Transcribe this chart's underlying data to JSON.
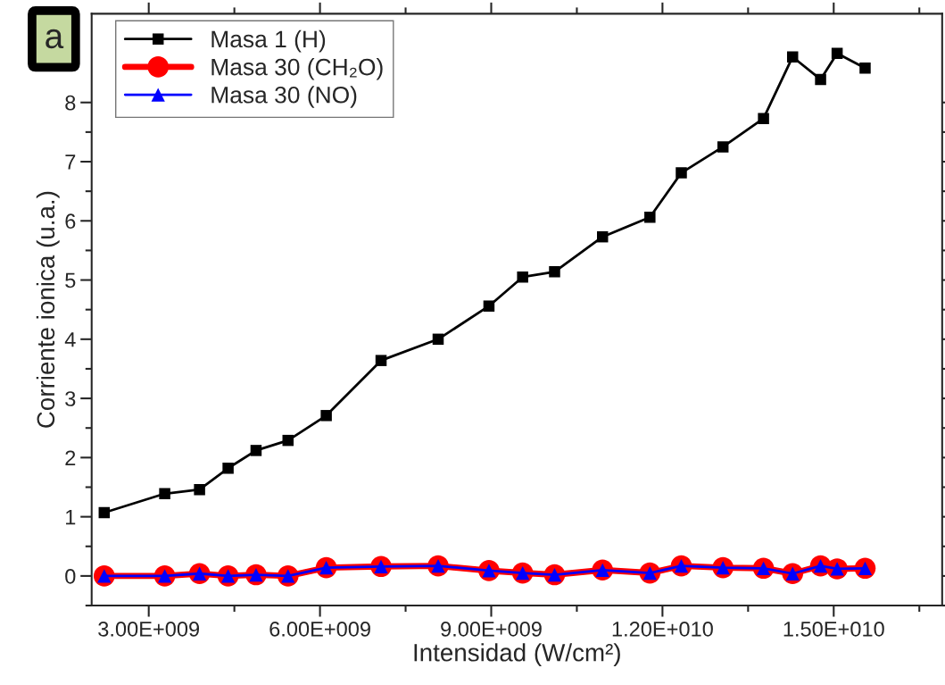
{
  "chart_data": {
    "type": "line",
    "xlabel": "Intensidad (W/cm²)",
    "ylabel": "Corriente ionica (u.a.)",
    "annotations": [
      "a"
    ],
    "x": [
      2220000000.0,
      3280000000.0,
      3890000000.0,
      4390000000.0,
      4880000000.0,
      5440000000.0,
      6110000000.0,
      7070000000.0,
      8070000000.0,
      8960000000.0,
      9550000000.0,
      10110000000.0,
      10950000000.0,
      11780000000.0,
      12330000000.0,
      13060000000.0,
      13770000000.0,
      14280000000.0,
      14770000000.0,
      15060000000.0,
      15550000000.0
    ],
    "series": [
      {
        "name": "Masa 1 (H)",
        "color": "#000000",
        "marker": "square",
        "values": [
          1.07,
          1.39,
          1.46,
          1.82,
          2.12,
          2.29,
          2.71,
          3.64,
          4.0,
          4.56,
          5.05,
          5.14,
          5.73,
          6.06,
          6.81,
          7.25,
          7.73,
          8.77,
          8.39,
          8.83,
          8.58
        ]
      },
      {
        "name": "Masa 30 (CH₂O)",
        "color": "#ff0000",
        "marker": "circle",
        "values": [
          0.0,
          0.0,
          0.04,
          0.0,
          0.02,
          0.0,
          0.14,
          0.16,
          0.17,
          0.09,
          0.05,
          0.02,
          0.1,
          0.05,
          0.17,
          0.14,
          0.13,
          0.04,
          0.17,
          0.12,
          0.13
        ]
      },
      {
        "name": "Masa 30 (NO)",
        "color": "#0000ff",
        "marker": "triangle",
        "values": [
          0.0,
          0.0,
          0.04,
          0.0,
          0.02,
          0.0,
          0.14,
          0.16,
          0.17,
          0.09,
          0.05,
          0.02,
          0.1,
          0.05,
          0.17,
          0.14,
          0.13,
          0.04,
          0.17,
          0.12,
          0.13
        ]
      }
    ],
    "xlim": [
      2000000000.0,
      16900000000.0
    ],
    "ylim": [
      -0.5,
      9.5
    ],
    "xticks": [
      {
        "value": 3000000000.0,
        "label": "3.00E+009"
      },
      {
        "value": 6000000000.0,
        "label": "6.00E+009"
      },
      {
        "value": 9000000000.0,
        "label": "9.00E+009"
      },
      {
        "value": 12000000000.0,
        "label": "1.20E+010"
      },
      {
        "value": 15000000000.0,
        "label": "1.50E+010"
      }
    ],
    "yticks": [
      0,
      1,
      2,
      3,
      4,
      5,
      6,
      7,
      8
    ],
    "grid": false,
    "legend": "top left",
    "line_style": "solid"
  }
}
